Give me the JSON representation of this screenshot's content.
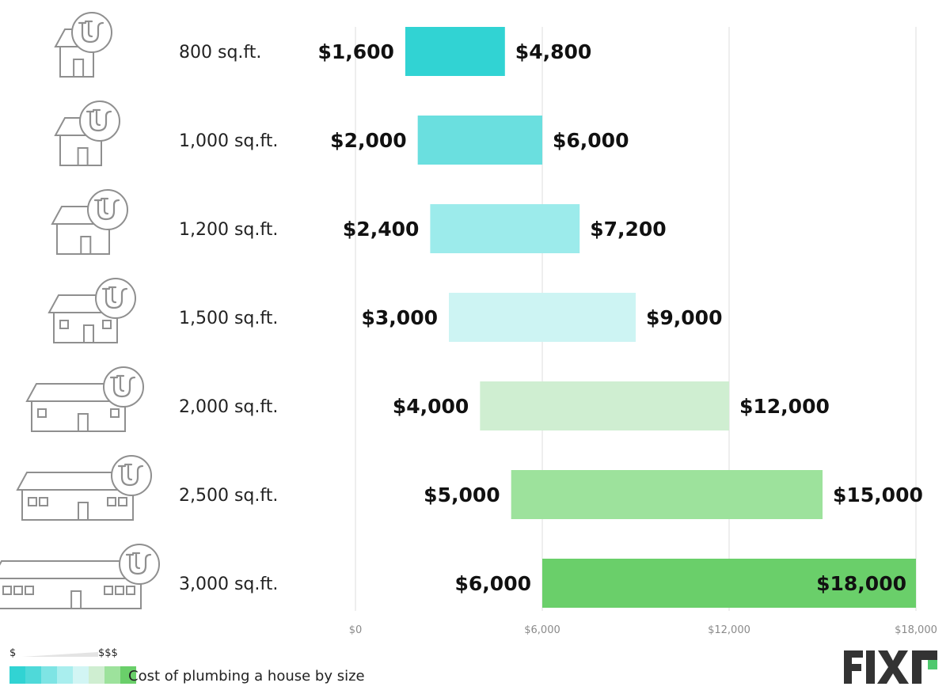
{
  "chart_data": {
    "type": "bar",
    "orientation": "horizontal-range",
    "title": "",
    "xlabel": "",
    "ylabel": "",
    "xlim": [
      0,
      18000
    ],
    "x_ticks": [
      0,
      6000,
      12000,
      18000
    ],
    "x_tick_labels": [
      "$0",
      "$6,000",
      "$12,000",
      "$18,000"
    ],
    "grid": true,
    "categories": [
      "800 sq.ft.",
      "1,000 sq.ft.",
      "1,200 sq.ft.",
      "1,500 sq.ft.",
      "2,000 sq.ft.",
      "2,500 sq.ft.",
      "3,000 sq.ft."
    ],
    "low": [
      1600,
      2000,
      2400,
      3000,
      4000,
      5000,
      6000
    ],
    "high": [
      4800,
      6000,
      7200,
      9000,
      12000,
      15000,
      18000
    ],
    "low_labels": [
      "$1,600",
      "$2,000",
      "$2,400",
      "$3,000",
      "$4,000",
      "$5,000",
      "$6,000"
    ],
    "high_labels": [
      "$4,800",
      "$6,000",
      "$7,200",
      "$9,000",
      "$12,000",
      "$15,000",
      "$18,000"
    ],
    "colors": [
      "#31d3d3",
      "#6adfdf",
      "#9cebeb",
      "#cdf4f3",
      "#cfeed1",
      "#9de29c",
      "#6acf6a"
    ],
    "icon": "house-with-plumbing-pipes-icon"
  },
  "legend": {
    "low_symbol": "$",
    "high_symbol": "$$$",
    "title": "Cost of plumbing a house by size",
    "swatch_colors": [
      "#31d3d3",
      "#4fd9d9",
      "#7ee4e4",
      "#a9eeee",
      "#d2f5f4",
      "#cfeed1",
      "#9de29c",
      "#6acf6a"
    ]
  },
  "brand": {
    "logo_text": "FIXR",
    "logo_color": "#333333",
    "accent_color": "#4fc96e"
  }
}
